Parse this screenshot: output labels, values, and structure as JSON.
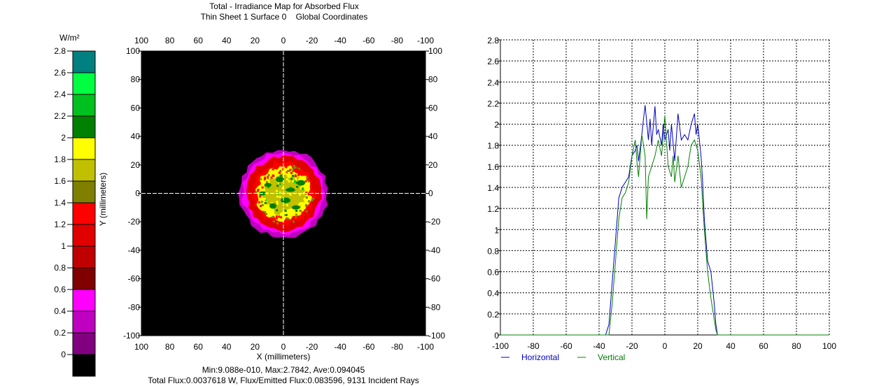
{
  "title": {
    "line1": "Total - Irradiance Map for Absorbed Flux",
    "line2": "Thin Sheet 1 Surface 0    Global Coordinates"
  },
  "colorbar": {
    "unit": "W/m²",
    "ticks": [
      "2.8",
      "2.6",
      "2.4",
      "2.2",
      "2",
      "1.8",
      "1.6",
      "1.4",
      "1.2",
      "1",
      "0.8",
      "0.6",
      "0.4",
      "0.2",
      "0"
    ],
    "colors": [
      "#008080",
      "#00ff40",
      "#00c020",
      "#008000",
      "#ffff00",
      "#c0c000",
      "#808000",
      "#ff0000",
      "#e00000",
      "#c00000",
      "#800000",
      "#ff00ff",
      "#c000c0",
      "#800080",
      "#000000"
    ]
  },
  "map": {
    "ylabel": "Y (millimeters)",
    "xlabel": "X (millimeters)",
    "top_ticks": [
      "100",
      "80",
      "60",
      "40",
      "20",
      "0",
      "-20",
      "-40",
      "-60",
      "-80",
      "-100"
    ],
    "bottom_ticks": [
      "100",
      "80",
      "60",
      "40",
      "20",
      "0",
      "-20",
      "-40",
      "-60",
      "-80",
      "-100"
    ],
    "left_ticks": [
      "100",
      "80",
      "60",
      "40",
      "20",
      "0",
      "-20",
      "-40",
      "-60",
      "-80",
      "-100"
    ],
    "right_ticks": [
      "100",
      "80",
      "60",
      "40",
      "20",
      "0",
      "-20",
      "-40",
      "-60",
      "-80",
      "-100"
    ]
  },
  "stats": {
    "line1": "Min:9.088e-010, Max:2.7842, Ave:0.094045",
    "line2": "Total Flux:0.0037618 W, Flux/Emitted Flux:0.083596, 9131 Incident Rays"
  },
  "chart_data": {
    "type": "line",
    "title": "",
    "xlabel": "",
    "ylabel": "",
    "xlim": [
      -100,
      100
    ],
    "ylim": [
      0,
      2.8
    ],
    "grid": true,
    "legend": "bottom-left",
    "x_ticks": [
      "-100",
      "-80",
      "-60",
      "-40",
      "-20",
      "0",
      "20",
      "40",
      "60",
      "80",
      "100"
    ],
    "y_ticks": [
      "0",
      "0.2",
      "0.4",
      "0.6",
      "0.8",
      "1",
      "1.2",
      "1.4",
      "1.6",
      "1.8",
      "2",
      "2.2",
      "2.4",
      "2.6",
      "2.8"
    ],
    "series": [
      {
        "name": "Horizontal",
        "color": "#0000c0",
        "x": [
          -100,
          -40,
          -36,
          -34,
          -32,
          -30,
          -28,
          -26,
          -24,
          -22,
          -21,
          -20,
          -18,
          -17,
          -16,
          -14,
          -13,
          -12,
          -10,
          -9,
          -8,
          -6,
          -5,
          -4,
          -2,
          -1,
          0,
          2,
          3,
          4,
          6,
          8,
          10,
          12,
          14,
          16,
          18,
          19,
          20,
          22,
          23,
          24,
          26,
          28,
          30,
          31,
          32,
          40,
          100
        ],
        "values": [
          0,
          0,
          0,
          0.1,
          0.5,
          0.9,
          1.3,
          1.4,
          1.45,
          1.5,
          1.6,
          1.7,
          1.75,
          1.8,
          1.65,
          1.9,
          2.05,
          2.18,
          1.85,
          2.05,
          1.8,
          2.17,
          1.9,
          1.95,
          1.8,
          2.0,
          1.85,
          1.95,
          1.75,
          2.0,
          1.65,
          2.1,
          1.85,
          1.9,
          1.85,
          2.0,
          2.1,
          1.9,
          2.0,
          1.7,
          1.45,
          1.1,
          0.7,
          0.6,
          0.3,
          0.1,
          0,
          0,
          0
        ]
      },
      {
        "name": "Vertical",
        "color": "#008000",
        "x": [
          -100,
          -40,
          -36,
          -34,
          -32,
          -30,
          -28,
          -26,
          -24,
          -22,
          -20,
          -18,
          -17,
          -16,
          -14,
          -12,
          -11,
          -10,
          -8,
          -6,
          -4,
          -2,
          0,
          2,
          4,
          5,
          6,
          8,
          10,
          12,
          14,
          16,
          18,
          20,
          22,
          24,
          26,
          28,
          30,
          31,
          32,
          40,
          100
        ],
        "values": [
          0,
          0,
          0,
          0,
          0.3,
          0.7,
          1.1,
          1.3,
          1.35,
          1.45,
          1.7,
          1.85,
          1.65,
          1.5,
          1.9,
          1.7,
          1.1,
          1.5,
          1.6,
          1.7,
          1.85,
          1.7,
          2.08,
          1.6,
          1.5,
          1.7,
          1.45,
          1.7,
          1.4,
          1.5,
          1.6,
          1.8,
          1.85,
          1.75,
          1.5,
          1.0,
          0.6,
          0.35,
          0.15,
          0.05,
          0,
          0,
          0
        ]
      }
    ]
  }
}
